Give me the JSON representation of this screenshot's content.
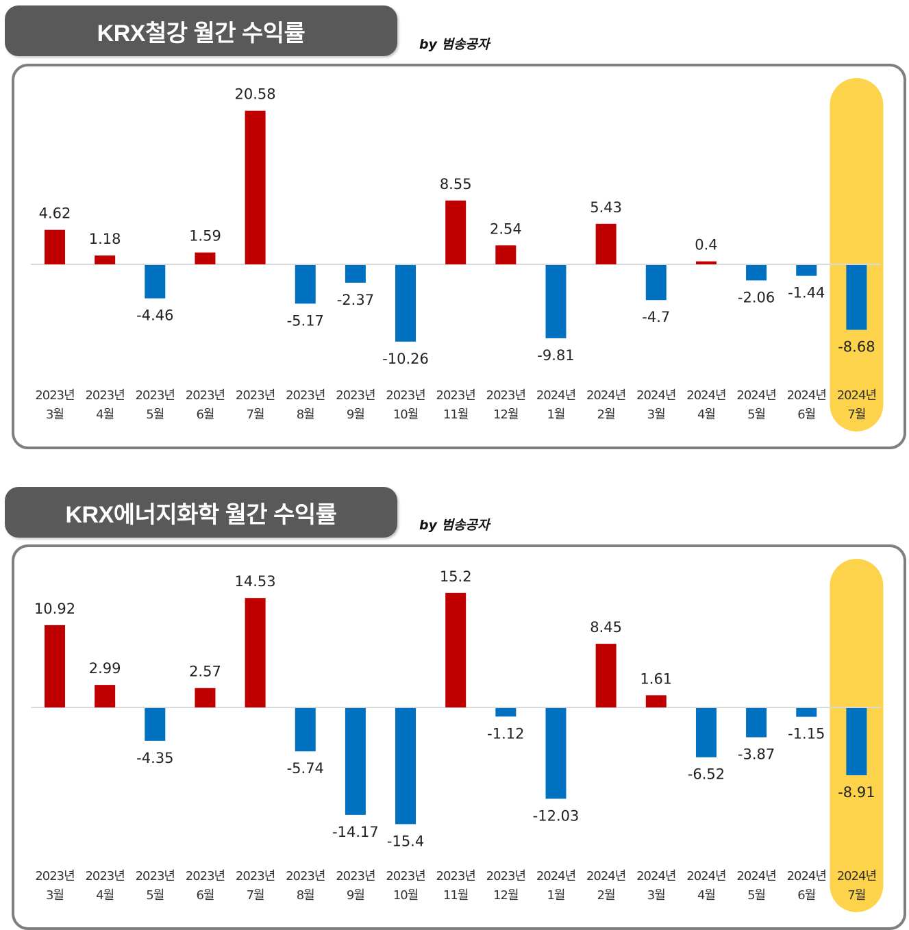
{
  "colors": {
    "positive": "#C00000",
    "negative": "#0070C0",
    "highlight": "#FDD34B",
    "axis": "#D9D9D9"
  },
  "chart_data": [
    {
      "type": "bar",
      "title": "KRX철강 월간 수익률",
      "byline": "by 범송공자",
      "categories_year": [
        "2023년",
        "2023년",
        "2023년",
        "2023년",
        "2023년",
        "2023년",
        "2023년",
        "2023년",
        "2023년",
        "2023년",
        "2024년",
        "2024년",
        "2024년",
        "2024년",
        "2024년",
        "2024년",
        "2024년"
      ],
      "categories_month": [
        "3월",
        "4월",
        "5월",
        "6월",
        "7월",
        "8월",
        "9월",
        "10월",
        "11월",
        "12월",
        "1월",
        "2월",
        "3월",
        "4월",
        "5월",
        "6월",
        "7월"
      ],
      "values": [
        4.62,
        1.18,
        -4.46,
        1.59,
        20.58,
        -5.17,
        -2.37,
        -10.26,
        8.55,
        2.54,
        -9.81,
        5.43,
        -4.7,
        0.4,
        -2.06,
        -1.44,
        -8.68
      ],
      "labels": [
        "4.62",
        "1.18",
        "-4.46",
        "1.59",
        "20.58",
        "-5.17",
        "-2.37",
        "-10.26",
        "8.55",
        "2.54",
        "-9.81",
        "5.43",
        "-4.7",
        "0.4",
        "-2.06",
        "-1.44",
        "-8.68"
      ],
      "highlight_index": 16
    },
    {
      "type": "bar",
      "title": "KRX에너지화학 월간 수익률",
      "byline": "by 범송공자",
      "categories_year": [
        "2023년",
        "2023년",
        "2023년",
        "2023년",
        "2023년",
        "2023년",
        "2023년",
        "2023년",
        "2023년",
        "2023년",
        "2024년",
        "2024년",
        "2024년",
        "2024년",
        "2024년",
        "2024년",
        "2024년"
      ],
      "categories_month": [
        "3월",
        "4월",
        "5월",
        "6월",
        "7월",
        "8월",
        "9월",
        "10월",
        "11월",
        "12월",
        "1월",
        "2월",
        "3월",
        "4월",
        "5월",
        "6월",
        "7월"
      ],
      "values": [
        10.92,
        2.99,
        -4.35,
        2.57,
        14.53,
        -5.74,
        -14.17,
        -15.4,
        15.2,
        -1.12,
        -12.03,
        8.45,
        1.61,
        -6.52,
        -3.87,
        -1.15,
        -8.91
      ],
      "labels": [
        "10.92",
        "2.99",
        "-4.35",
        "2.57",
        "14.53",
        "-5.74",
        "-14.17",
        "-15.4",
        "15.2",
        "-1.12",
        "-12.03",
        "8.45",
        "1.61",
        "-6.52",
        "-3.87",
        "-1.15",
        "-8.91"
      ],
      "highlight_index": 16
    }
  ]
}
